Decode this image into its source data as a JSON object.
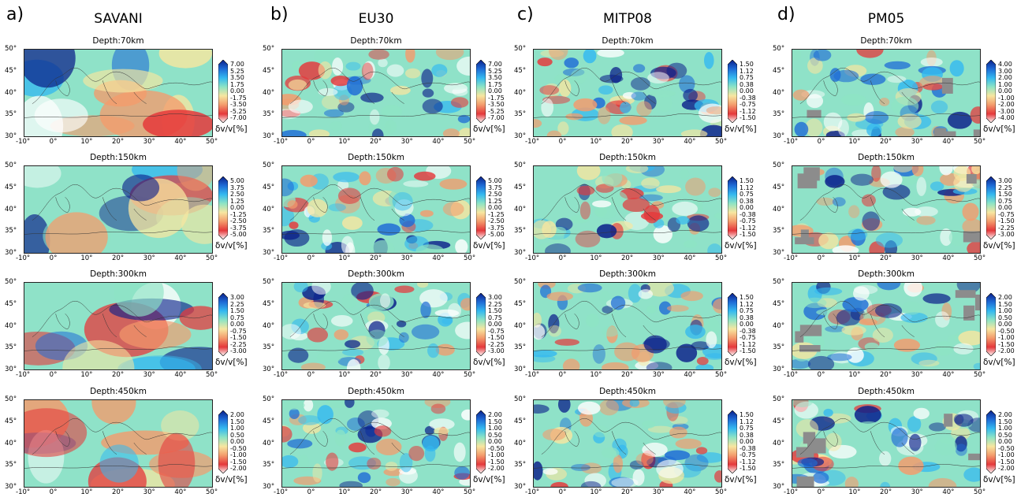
{
  "columns": [
    {
      "label": "a)",
      "model": "SAVANI"
    },
    {
      "label": "b)",
      "model": "EU30"
    },
    {
      "label": "c)",
      "model": "MITP08"
    },
    {
      "label": "d)",
      "model": "PM05"
    }
  ],
  "depths": [
    "Depth:70km",
    "Depth:150km",
    "Depth:300km",
    "Depth:450km"
  ],
  "lat_ticks": [
    "50°",
    "45°",
    "40°",
    "35°",
    "30°"
  ],
  "lon_ticks": [
    "-10°",
    "0°",
    "10°",
    "20°",
    "30°",
    "40°",
    "50°"
  ],
  "colorbar_unit": "δv/v[%]",
  "colorbar_ticks": [
    [
      [
        "7.00",
        "5.25",
        "3.50",
        "1.75",
        "0.00",
        "-1.75",
        "-3.50",
        "-5.25",
        "-7.00"
      ],
      [
        "5.00",
        "3.75",
        "2.50",
        "1.25",
        "0.00",
        "-1.25",
        "-2.50",
        "-3.75",
        "-5.00"
      ],
      [
        "3.00",
        "2.25",
        "1.50",
        "0.75",
        "0.00",
        "-0.75",
        "-1.50",
        "-2.25",
        "-3.00"
      ],
      [
        "2.00",
        "1.50",
        "1.00",
        "0.50",
        "0.00",
        "-0.50",
        "-1.00",
        "-1.50",
        "-2.00"
      ]
    ],
    [
      [
        "7.00",
        "5.25",
        "3.50",
        "1.75",
        "0.00",
        "-1.75",
        "-3.50",
        "-5.25",
        "-7.00"
      ],
      [
        "5.00",
        "3.75",
        "2.50",
        "1.25",
        "0.00",
        "-1.25",
        "-2.50",
        "-3.75",
        "-5.00"
      ],
      [
        "3.00",
        "2.25",
        "1.50",
        "0.75",
        "0.00",
        "-0.75",
        "-1.50",
        "-2.25",
        "-3.00"
      ],
      [
        "2.00",
        "1.50",
        "1.00",
        "0.50",
        "0.00",
        "-0.50",
        "-1.00",
        "-1.50",
        "-2.00"
      ]
    ],
    [
      [
        "1.50",
        "1.12",
        "0.75",
        "0.38",
        "0.00",
        "-0.38",
        "-0.75",
        "-1.12",
        "-1.50"
      ],
      [
        "1.50",
        "1.12",
        "0.75",
        "0.38",
        "0.00",
        "-0.38",
        "-0.75",
        "-1.12",
        "-1.50"
      ],
      [
        "1.50",
        "1.12",
        "0.75",
        "0.38",
        "0.00",
        "-0.38",
        "-0.75",
        "-1.12",
        "-1.50"
      ],
      [
        "1.50",
        "1.12",
        "0.75",
        "0.38",
        "0.00",
        "-0.38",
        "-0.75",
        "-1.12",
        "-1.50"
      ]
    ],
    [
      [
        "4.00",
        "3.00",
        "2.00",
        "1.00",
        "0.00",
        "-1.00",
        "-2.00",
        "-3.00",
        "-4.00"
      ],
      [
        "3.00",
        "2.25",
        "1.50",
        "0.75",
        "0.00",
        "-0.75",
        "-1.50",
        "-2.25",
        "-3.00"
      ],
      [
        "2.00",
        "1.50",
        "1.00",
        "0.50",
        "0.00",
        "-0.50",
        "-1.00",
        "-1.50",
        "-2.00"
      ],
      [
        "2.00",
        "1.50",
        "1.00",
        "0.50",
        "0.00",
        "-0.50",
        "-1.00",
        "-1.50",
        "-2.00"
      ]
    ]
  ],
  "colormap": {
    "stops": [
      "#ffffff",
      "#e5383b",
      "#f49b6c",
      "#f7e6a0",
      "#8ee4c4",
      "#34b9f0",
      "#1e6bd6",
      "#0b1f8a"
    ]
  }
}
